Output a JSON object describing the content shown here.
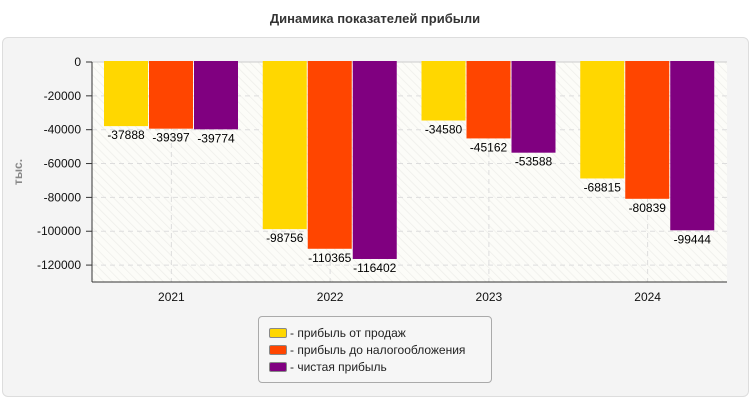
{
  "chart_data": {
    "type": "bar",
    "title": "Динамика показателей прибыли",
    "ylabel": "тыс.",
    "xlabel": "",
    "categories": [
      "2021",
      "2022",
      "2023",
      "2024"
    ],
    "series": [
      {
        "name": "- прибыль от продаж",
        "color": "#FFD700",
        "values": [
          -37888,
          -98756,
          -34580,
          -68815
        ]
      },
      {
        "name": "- прибыль до налогообложения",
        "color": "#FF4500",
        "values": [
          -39397,
          -110365,
          -45162,
          -80839
        ]
      },
      {
        "name": "- чистая прибыль",
        "color": "#800080",
        "values": [
          -39774,
          -116402,
          -53588,
          -99444
        ]
      }
    ],
    "ylim": [
      -130000,
      0
    ],
    "yticks": [
      0,
      -20000,
      -40000,
      -60000,
      -80000,
      -100000,
      -120000
    ],
    "grid": true,
    "legend": "bottom"
  }
}
